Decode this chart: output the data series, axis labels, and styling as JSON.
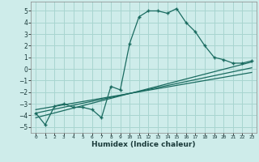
{
  "xlabel": "Humidex (Indice chaleur)",
  "bg_color": "#ceecea",
  "grid_color": "#a8d5d0",
  "line_color": "#1a6b60",
  "xlim": [
    -0.5,
    23.5
  ],
  "ylim": [
    -5.5,
    5.8
  ],
  "x_ticks": [
    0,
    1,
    2,
    3,
    4,
    5,
    6,
    7,
    8,
    9,
    10,
    11,
    12,
    13,
    14,
    15,
    16,
    17,
    18,
    19,
    20,
    21,
    22,
    23
  ],
  "y_ticks": [
    -5,
    -4,
    -3,
    -2,
    -1,
    0,
    1,
    2,
    3,
    4,
    5
  ],
  "main_series_x": [
    0,
    1,
    2,
    3,
    4,
    5,
    6,
    7,
    8,
    9,
    10,
    11,
    12,
    13,
    14,
    15,
    16,
    17,
    18,
    19,
    20,
    21,
    22,
    23
  ],
  "main_series_y": [
    -3.8,
    -4.8,
    -3.2,
    -3.0,
    -3.3,
    -3.3,
    -3.5,
    -4.2,
    -1.5,
    -1.8,
    2.2,
    4.5,
    5.0,
    5.0,
    4.8,
    5.2,
    4.0,
    3.2,
    2.0,
    1.0,
    0.8,
    0.5,
    0.5,
    0.7
  ],
  "trend1_x": [
    0,
    23
  ],
  "trend1_y": [
    -3.8,
    0.1
  ],
  "trend2_x": [
    0,
    23
  ],
  "trend2_y": [
    -3.5,
    -0.3
  ],
  "trend3_x": [
    0,
    23
  ],
  "trend3_y": [
    -4.2,
    0.6
  ],
  "marker": "+"
}
